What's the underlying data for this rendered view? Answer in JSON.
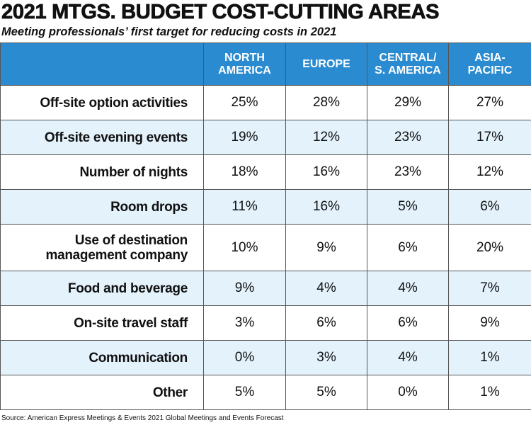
{
  "header": {
    "title": "2021 MTGS. BUDGET COST-CUTTING AREAS",
    "subtitle": "Meeting professionals’ first target for reducing costs in 2021"
  },
  "table": {
    "columns": [
      "NORTH\nAMERICA",
      "EUROPE",
      "CENTRAL/\nS. AMERICA",
      "ASIA-\nPACIFIC"
    ],
    "rows": [
      [
        "Off-site option activities",
        "25%",
        "28%",
        "29%",
        "27%"
      ],
      [
        "Off-site evening events",
        "19%",
        "12%",
        "23%",
        "17%"
      ],
      [
        "Number of nights",
        "18%",
        "16%",
        "23%",
        "12%"
      ],
      [
        "Room drops",
        "11%",
        "16%",
        "5%",
        "6%"
      ],
      [
        "Use of destination\nmanagement company",
        "10%",
        "9%",
        "6%",
        "20%"
      ],
      [
        "Food and beverage",
        "9%",
        "4%",
        "4%",
        "7%"
      ],
      [
        "On-site travel staff",
        "3%",
        "6%",
        "6%",
        "9%"
      ],
      [
        "Communication",
        "0%",
        "3%",
        "4%",
        "1%"
      ],
      [
        "Other",
        "5%",
        "5%",
        "0%",
        "1%"
      ]
    ]
  },
  "footer": {
    "source": "Source: American Express Meetings & Events 2021 Global Meetings and Events Forecast"
  }
}
